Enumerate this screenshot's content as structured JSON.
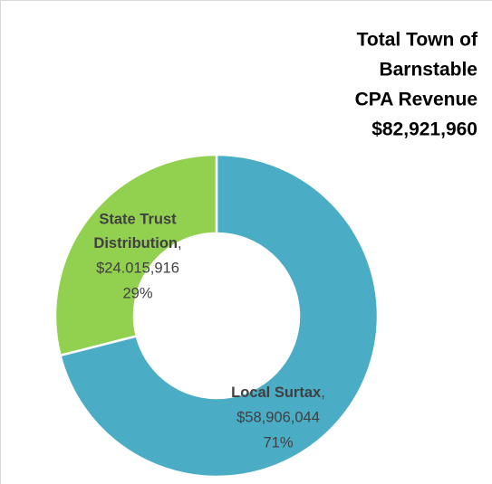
{
  "chart_data": {
    "type": "donut",
    "title": [
      "Total Town of",
      "Barnstable",
      "CPA Revenue",
      "$82,921,960"
    ],
    "categories": [
      "Local Surtax",
      "State Trust Distribution"
    ],
    "label_separator": ",",
    "values": [
      58906044,
      24015916
    ],
    "value_labels": [
      "$58,906,044",
      "$24.015,916"
    ],
    "percents": [
      71,
      29
    ],
    "percent_labels": [
      "71%",
      "29%"
    ],
    "colors": [
      "#4bacc6",
      "#92d050"
    ]
  }
}
